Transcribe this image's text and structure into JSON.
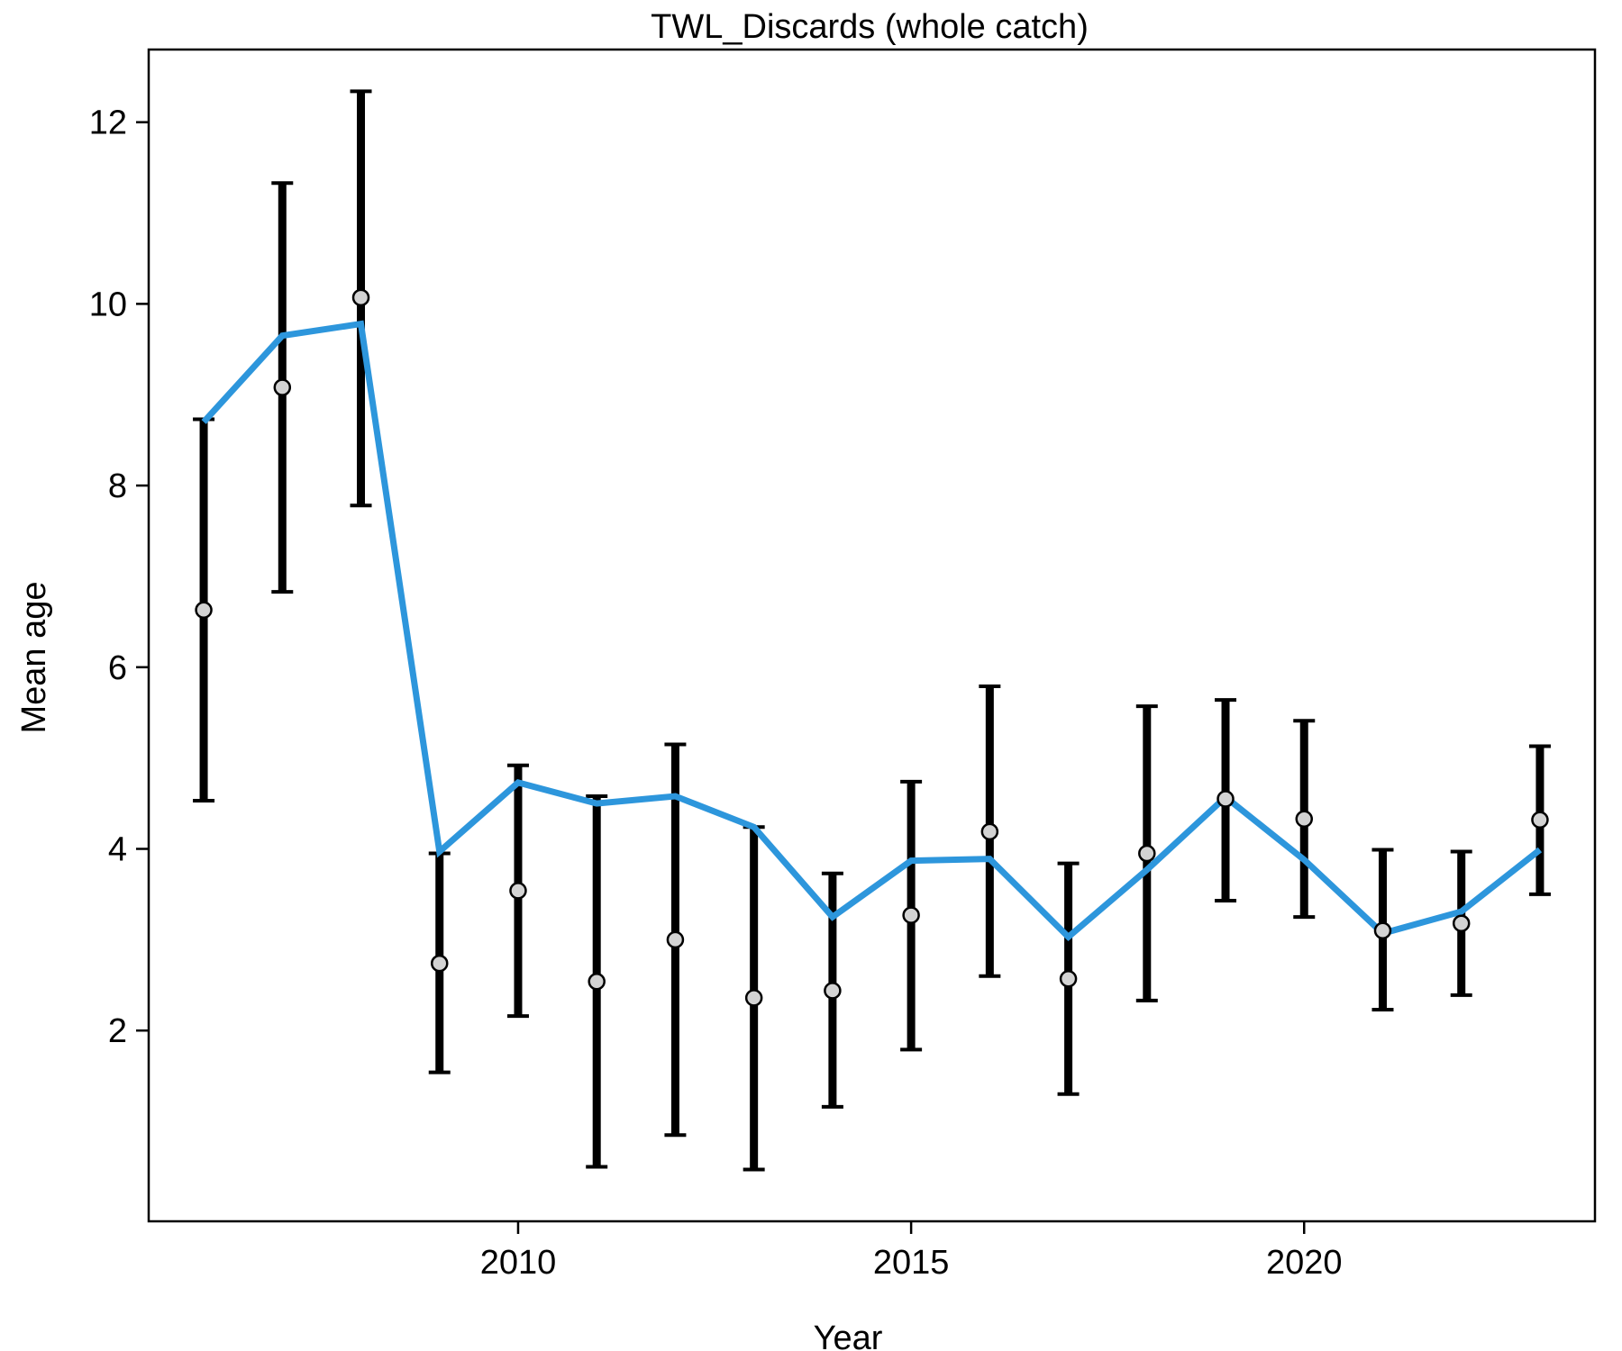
{
  "chart_data": {
    "type": "line",
    "title": "TWL_Discards (whole catch)",
    "xlabel": "Year",
    "ylabel": "Mean age",
    "xlim": [
      2005.3,
      2023.7
    ],
    "ylim": [
      -0.1,
      12.8
    ],
    "xticks": [
      2010,
      2015,
      2020
    ],
    "yticks": [
      2,
      4,
      6,
      8,
      10,
      12
    ],
    "grid": false,
    "legend": "none",
    "colors": {
      "fit_line": "#2d96dc",
      "error_bar": "#000000",
      "point_fill": "#d3d3d3",
      "point_stroke": "#000000"
    },
    "x": [
      2006,
      2007,
      2008,
      2009,
      2010,
      2011,
      2012,
      2013,
      2014,
      2015,
      2016,
      2017,
      2018,
      2019,
      2020,
      2021,
      2022,
      2023
    ],
    "series": [
      {
        "kind": "observed",
        "values": [
          6.63,
          9.08,
          10.07,
          2.74,
          3.54,
          2.54,
          3.0,
          2.36,
          2.44,
          3.27,
          4.19,
          2.57,
          3.95,
          4.55,
          4.33,
          3.1,
          3.18,
          4.32
        ],
        "lower": [
          4.53,
          6.83,
          7.78,
          1.54,
          2.16,
          0.5,
          0.85,
          0.47,
          1.16,
          1.79,
          2.6,
          1.3,
          2.33,
          3.43,
          3.25,
          2.23,
          2.39,
          3.5
        ],
        "upper": [
          8.73,
          11.33,
          12.34,
          3.95,
          4.92,
          4.58,
          5.15,
          4.24,
          3.73,
          4.74,
          5.79,
          3.84,
          5.57,
          5.64,
          5.41,
          3.99,
          3.97,
          5.13
        ]
      },
      {
        "kind": "expected",
        "values": [
          8.7,
          9.65,
          9.78,
          3.97,
          4.73,
          4.5,
          4.58,
          4.24,
          3.25,
          3.87,
          3.89,
          3.03,
          3.77,
          4.57,
          3.88,
          3.07,
          3.31,
          3.99
        ]
      }
    ]
  }
}
